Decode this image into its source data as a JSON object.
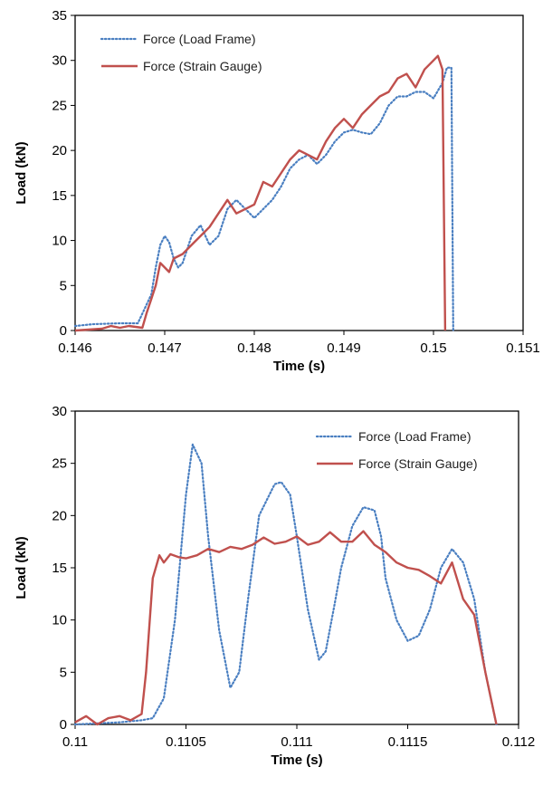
{
  "colors": {
    "load_frame": "#4a7fc1",
    "strain_gauge": "#c0504d",
    "axis": "#000000"
  },
  "chart_data": [
    {
      "type": "line",
      "xlabel": "Time (s)",
      "ylabel": "Load (kN)",
      "xlim": [
        0.146,
        0.151
      ],
      "ylim": [
        0,
        35
      ],
      "xticks": [
        0.146,
        0.147,
        0.148,
        0.149,
        0.15,
        0.151
      ],
      "xtick_labels": [
        "0.146",
        "0.147",
        "0.148",
        "0.149",
        "0.15",
        "0.151"
      ],
      "yticks": [
        0,
        5,
        10,
        15,
        20,
        25,
        30,
        35
      ],
      "ytick_labels": [
        "0",
        "5",
        "10",
        "15",
        "20",
        "25",
        "30",
        "35"
      ],
      "grid": false,
      "legend_position": "top-left",
      "series": [
        {
          "name": "Force (Load Frame)",
          "style": "dotted",
          "color": "#4a7fc1",
          "x": [
            0.146,
            0.1462,
            0.1465,
            0.1467,
            0.14685,
            0.1469,
            0.14695,
            0.147,
            0.14705,
            0.1471,
            0.14715,
            0.1472,
            0.1473,
            0.1474,
            0.1475,
            0.1476,
            0.1477,
            0.1478,
            0.1479,
            0.148,
            0.1481,
            0.1482,
            0.1483,
            0.1484,
            0.1485,
            0.1486,
            0.1487,
            0.1488,
            0.1489,
            0.149,
            0.1491,
            0.1492,
            0.1493,
            0.1494,
            0.1495,
            0.1496,
            0.1497,
            0.1498,
            0.1499,
            0.15,
            0.1501,
            0.15015,
            0.1502,
            0.15022
          ],
          "y": [
            0.5,
            0.7,
            0.8,
            0.8,
            4.0,
            7.0,
            9.5,
            10.5,
            9.8,
            8.0,
            7.0,
            7.5,
            10.5,
            11.7,
            9.5,
            10.5,
            13.5,
            14.5,
            13.5,
            12.5,
            13.5,
            14.5,
            16.0,
            18.0,
            19.0,
            19.5,
            18.5,
            19.5,
            21.0,
            22.0,
            22.3,
            22.0,
            21.8,
            23.0,
            25.0,
            26.0,
            26.0,
            26.5,
            26.5,
            25.8,
            27.5,
            29.2,
            29.2,
            0
          ]
        },
        {
          "name": "Force (Strain Gauge)",
          "style": "solid",
          "color": "#c0504d",
          "x": [
            0.146,
            0.1463,
            0.1464,
            0.1465,
            0.1466,
            0.14675,
            0.1468,
            0.14685,
            0.1469,
            0.14695,
            0.147,
            0.14705,
            0.1471,
            0.1472,
            0.1473,
            0.1474,
            0.1475,
            0.1476,
            0.1477,
            0.1478,
            0.1479,
            0.148,
            0.1481,
            0.1482,
            0.1483,
            0.1484,
            0.1485,
            0.1486,
            0.1487,
            0.1488,
            0.1489,
            0.149,
            0.1491,
            0.1492,
            0.1493,
            0.1494,
            0.1495,
            0.1496,
            0.1497,
            0.1498,
            0.1499,
            0.15,
            0.15005,
            0.1501,
            0.15013
          ],
          "y": [
            0,
            0.2,
            0.5,
            0.3,
            0.5,
            0.3,
            2.0,
            3.5,
            5.0,
            7.5,
            7.0,
            6.5,
            8.0,
            8.5,
            9.5,
            10.5,
            11.5,
            13.0,
            14.5,
            13.0,
            13.5,
            14.0,
            16.5,
            16.0,
            17.5,
            19.0,
            20.0,
            19.5,
            19.0,
            21.0,
            22.5,
            23.5,
            22.5,
            24.0,
            25.0,
            26.0,
            26.5,
            28.0,
            28.5,
            27.0,
            29.0,
            30.0,
            30.5,
            29.0,
            0
          ]
        }
      ]
    },
    {
      "type": "line",
      "xlabel": "Time (s)",
      "ylabel": "Load (kN)",
      "xlim": [
        0.11,
        0.112
      ],
      "ylim": [
        0,
        30
      ],
      "xticks": [
        0.11,
        0.1105,
        0.111,
        0.1115,
        0.112
      ],
      "xtick_labels": [
        "0.11",
        "0.1105",
        "0.111",
        "0.1115",
        "0.112"
      ],
      "yticks": [
        0,
        5,
        10,
        15,
        20,
        25,
        30
      ],
      "ytick_labels": [
        "0",
        "5",
        "10",
        "15",
        "20",
        "25",
        "30"
      ],
      "grid": false,
      "legend_position": "top-right",
      "series": [
        {
          "name": "Force (Load Frame)",
          "style": "dotted",
          "color": "#4a7fc1",
          "x": [
            0.11,
            0.1102,
            0.1103,
            0.11035,
            0.1104,
            0.11045,
            0.1105,
            0.11053,
            0.11057,
            0.1106,
            0.11065,
            0.1107,
            0.11074,
            0.11078,
            0.11083,
            0.1109,
            0.11093,
            0.11097,
            0.111,
            0.11105,
            0.1111,
            0.11113,
            0.11117,
            0.1112,
            0.11125,
            0.1113,
            0.11135,
            0.11138,
            0.1114,
            0.11145,
            0.1115,
            0.11155,
            0.1116,
            0.11165,
            0.1117,
            0.11175,
            0.1118,
            0.11185,
            0.1119
          ],
          "y": [
            0,
            0.2,
            0.4,
            0.6,
            2.5,
            10.0,
            22.0,
            26.8,
            25.0,
            18.0,
            9.0,
            3.5,
            5.0,
            12.0,
            20.0,
            23.0,
            23.2,
            22.0,
            18.0,
            11.0,
            6.2,
            7.0,
            11.5,
            15.0,
            19.0,
            20.8,
            20.5,
            18.0,
            14.0,
            10.0,
            8.0,
            8.5,
            11.0,
            15.0,
            16.8,
            15.5,
            12.0,
            5.0,
            0
          ]
        },
        {
          "name": "Force (Strain Gauge)",
          "style": "solid",
          "color": "#c0504d",
          "x": [
            0.11,
            0.11005,
            0.1101,
            0.11015,
            0.1102,
            0.11025,
            0.1103,
            0.11032,
            0.11035,
            0.11038,
            0.1104,
            0.11043,
            0.11047,
            0.1105,
            0.11055,
            0.1106,
            0.11065,
            0.1107,
            0.11075,
            0.1108,
            0.11085,
            0.1109,
            0.11095,
            0.111,
            0.11105,
            0.1111,
            0.11115,
            0.1112,
            0.11125,
            0.1113,
            0.11135,
            0.1114,
            0.11145,
            0.1115,
            0.11155,
            0.1116,
            0.11165,
            0.1117,
            0.11175,
            0.1118,
            0.11185,
            0.1119
          ],
          "y": [
            0.2,
            0.8,
            0,
            0.6,
            0.8,
            0.4,
            1.0,
            5.0,
            14.0,
            16.2,
            15.5,
            16.3,
            16.0,
            15.9,
            16.2,
            16.8,
            16.5,
            17.0,
            16.8,
            17.2,
            17.9,
            17.3,
            17.5,
            18.0,
            17.2,
            17.5,
            18.4,
            17.5,
            17.5,
            18.5,
            17.2,
            16.5,
            15.5,
            15.0,
            14.8,
            14.2,
            13.5,
            15.5,
            12.0,
            10.5,
            5.0,
            0
          ]
        }
      ]
    }
  ]
}
